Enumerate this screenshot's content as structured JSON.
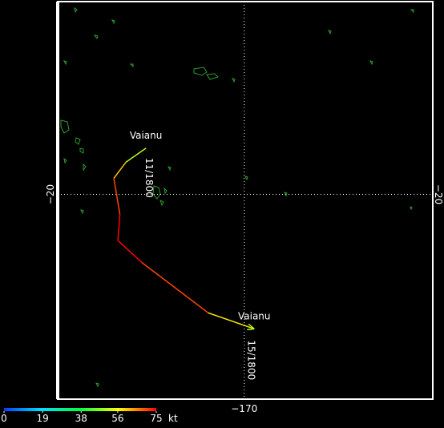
{
  "map": {
    "lonlim": [
      -179.3,
      -160.6
    ],
    "latlim": [
      -30.2,
      -10.4
    ],
    "latitude_lines": [
      {
        "value": -20,
        "label": "−20"
      }
    ],
    "longitude_lines": [
      {
        "value": -170,
        "label": "−170"
      }
    ],
    "track": {
      "name": "Vaianu",
      "start_time": "11/1800",
      "end_time": "15/1800",
      "lon": [
        -174.9,
        -175.9,
        -176.5,
        -176.2,
        -176.3,
        -175.1,
        -171.8,
        -169.5
      ],
      "lat": [
        -17.7,
        -18.4,
        -19.2,
        -21.0,
        -22.3,
        -23.4,
        -25.9,
        -26.7
      ],
      "wind": [
        45,
        56,
        65,
        75,
        75,
        75,
        65,
        50
      ]
    },
    "colorbar": {
      "lim": [
        0,
        75
      ],
      "ticks": [
        0,
        19,
        38,
        56,
        75
      ],
      "unit": "kt",
      "colors": [
        "#0040ff",
        "#00e0ff",
        "#00ff40",
        "#ffff00",
        "#ff0000"
      ]
    }
  }
}
